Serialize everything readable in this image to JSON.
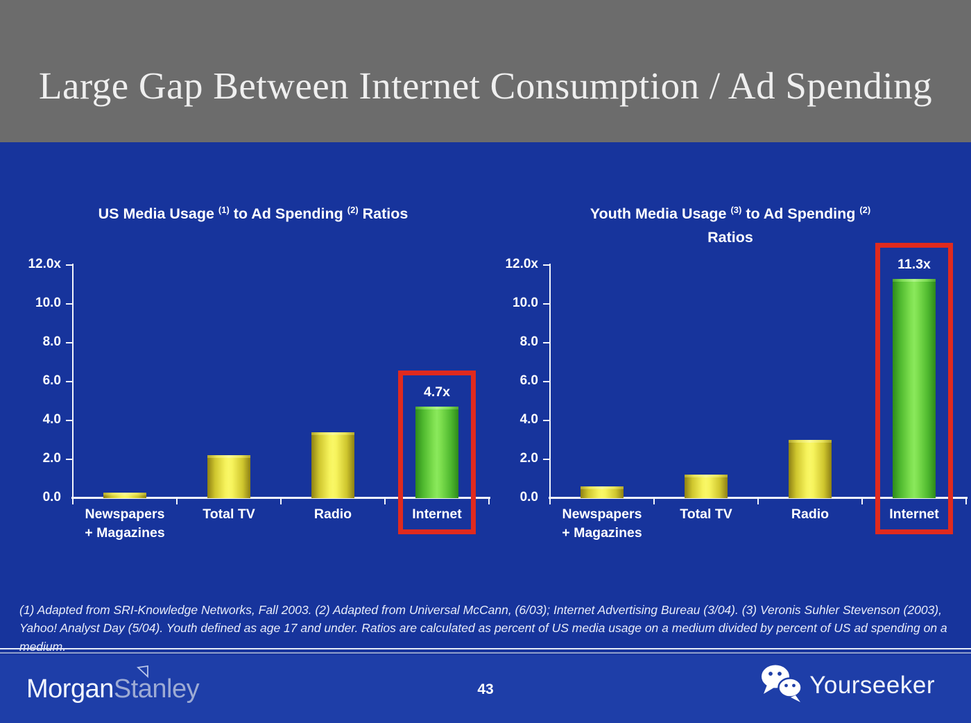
{
  "header": {
    "title": "Large Gap Between Internet Consumption / Ad Spending"
  },
  "footnote": {
    "text": "(1) Adapted from SRI-Knowledge Networks, Fall 2003.  (2) Adapted from Universal McCann, (6/03); Internet Advertising Bureau (3/04). (3) Veronis Suhler Stevenson (2003), Yahoo! Analyst Day (5/04).  Youth defined as age 17 and under.  Ratios are calculated as percent of US media usage on a medium divided by percent of US ad spending on a medium."
  },
  "footer": {
    "page_number": "43",
    "brand": {
      "part1": "Morgan",
      "part2": "Stanley",
      "flag_icon": "morgan-stanley-flag-icon"
    },
    "partner": {
      "label": "Yourseeker",
      "icon": "wechat-chat-bubbles-icon"
    }
  },
  "colors": {
    "slide_bg": "#17349c",
    "header_bg": "#6c6c6c",
    "footer_bg": "#1e3ea8",
    "axis": "#f3f5fb",
    "bar_yellow_edge": "#8d8013",
    "bar_yellow_mid": "#f9f766",
    "bar_green_edge": "#2e8a1b",
    "bar_green_mid": "#8ae95c",
    "highlight_red": "#e02a1e",
    "text": "#ffffff"
  },
  "chart_data": [
    {
      "type": "bar",
      "title_lines": [
        [
          {
            "text": "US Media Usage "
          },
          {
            "sup": "(1)"
          },
          {
            "text": " to Ad Spending "
          },
          {
            "sup": "(2)"
          },
          {
            "text": " Ratios"
          }
        ]
      ],
      "categories": [
        [
          "Newspapers",
          "+ Magazines"
        ],
        [
          "Total TV"
        ],
        [
          "Radio"
        ],
        [
          "Internet"
        ]
      ],
      "values": [
        0.3,
        2.2,
        3.4,
        4.7
      ],
      "bar_colors": [
        "yellow",
        "yellow",
        "yellow",
        "green"
      ],
      "value_labels": [
        "",
        "",
        "",
        "4.7x"
      ],
      "highlight_index": 3,
      "y_axis": {
        "ticks": [
          {
            "label": "12.0x",
            "value": 12
          },
          {
            "label": "10.0",
            "value": 10
          },
          {
            "label": "8.0",
            "value": 8
          },
          {
            "label": "6.0",
            "value": 6
          },
          {
            "label": "4.0",
            "value": 4
          },
          {
            "label": "2.0",
            "value": 2
          },
          {
            "label": "0.0",
            "value": 0
          }
        ]
      },
      "ylim": [
        0,
        12
      ],
      "grid": false,
      "legend": "none"
    },
    {
      "type": "bar",
      "title_lines": [
        [
          {
            "text": "Youth Media Usage "
          },
          {
            "sup": "(3)"
          },
          {
            "text": " to Ad Spending "
          },
          {
            "sup": "(2)"
          }
        ],
        [
          {
            "text": "Ratios"
          }
        ]
      ],
      "categories": [
        [
          "Newspapers",
          "+ Magazines"
        ],
        [
          "Total TV"
        ],
        [
          "Radio"
        ],
        [
          "Internet"
        ]
      ],
      "values": [
        0.6,
        1.2,
        3.0,
        11.3
      ],
      "bar_colors": [
        "yellow",
        "yellow",
        "yellow",
        "green"
      ],
      "value_labels": [
        "",
        "",
        "",
        "11.3x"
      ],
      "highlight_index": 3,
      "y_axis": {
        "ticks": [
          {
            "label": "12.0x",
            "value": 12
          },
          {
            "label": "10.0",
            "value": 10
          },
          {
            "label": "8.0",
            "value": 8
          },
          {
            "label": "6.0",
            "value": 6
          },
          {
            "label": "4.0",
            "value": 4
          },
          {
            "label": "2.0",
            "value": 2
          },
          {
            "label": "0.0",
            "value": 0
          }
        ]
      },
      "ylim": [
        0,
        12
      ],
      "grid": false,
      "legend": "none"
    }
  ]
}
